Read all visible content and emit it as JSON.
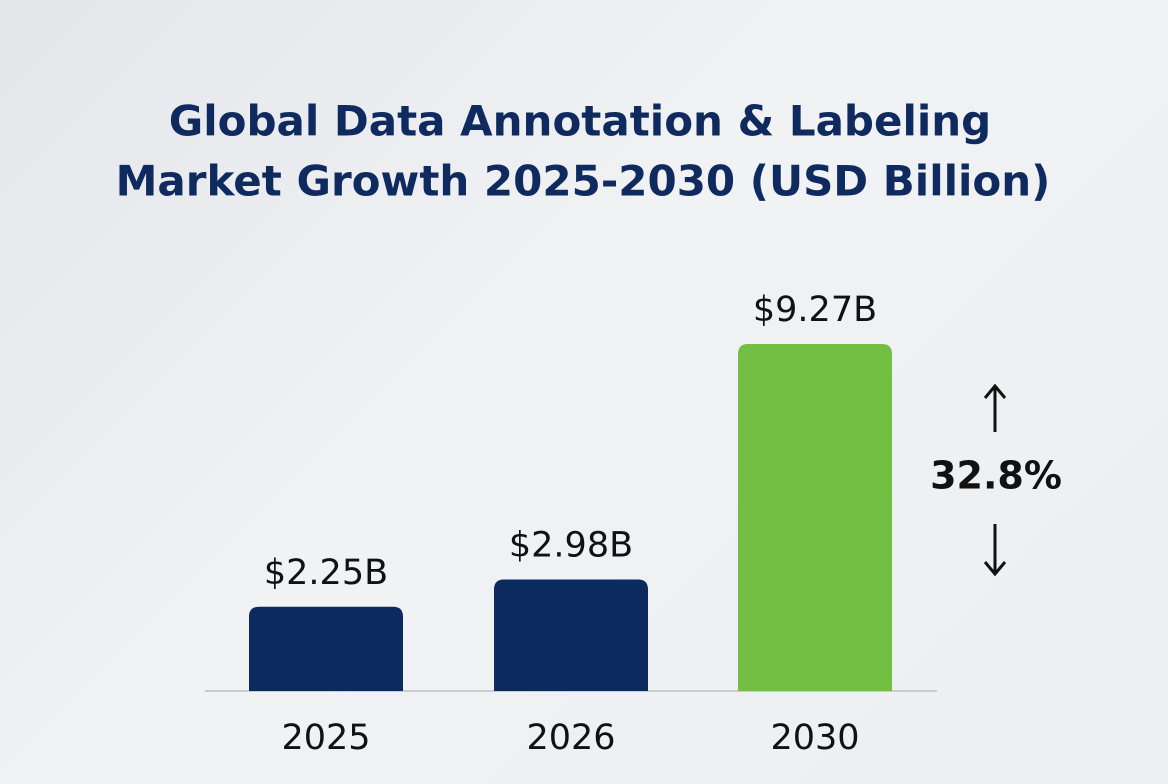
{
  "chart_data": {
    "type": "bar",
    "title": [
      "Global Data Annotation & Labeling",
      "Market Growth 2025-2030 (USD Billion)"
    ],
    "categories": [
      "2025",
      "2026",
      "2030"
    ],
    "values": [
      2.25,
      2.98,
      9.27
    ],
    "value_labels": [
      "$2.25B",
      "$2.98B",
      "$9.27B"
    ],
    "colors": [
      "#0b2a5e",
      "#0b2a5e",
      "#72bf44"
    ],
    "annotation": "32.8%"
  }
}
